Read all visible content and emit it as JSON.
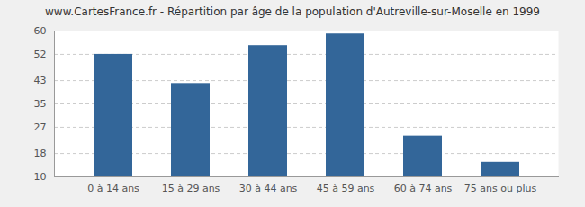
{
  "chart_data": {
    "type": "bar",
    "title": "www.CartesFrance.fr - Répartition par âge de la population d'Autreville-sur-Moselle en 1999",
    "categories": [
      "0 à 14 ans",
      "15 à 29 ans",
      "30 à 44 ans",
      "45 à 59 ans",
      "60 à 74 ans",
      "75 ans ou plus"
    ],
    "values": [
      52,
      42,
      55,
      59,
      24,
      15
    ],
    "color": "#336699",
    "ylim": [
      10,
      60
    ],
    "yticks": [
      10,
      18,
      27,
      35,
      43,
      52,
      60
    ],
    "grid": true
  }
}
